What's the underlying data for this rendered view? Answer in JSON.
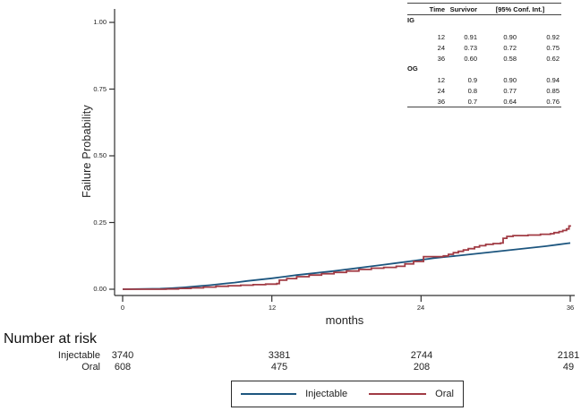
{
  "figure": {
    "y_axis_label": "Failure Probability",
    "x_axis_label": "months",
    "number_at_risk": {
      "title": "Number at risk",
      "rows": [
        {
          "label": "Injectable",
          "counts": [
            "3740",
            "3381",
            "2744",
            "2181"
          ]
        },
        {
          "label": "Oral",
          "counts": [
            "608",
            "475",
            "208",
            "49"
          ]
        }
      ]
    },
    "legend": {
      "items": [
        {
          "label": "Injectable",
          "color": "#1d567f"
        },
        {
          "label": "Oral",
          "color": "#a13b44"
        }
      ]
    }
  },
  "results_table": {
    "headers": {
      "time": "Time",
      "survivor": "Survivor",
      "ci": "[95% Conf. Int.]"
    },
    "groups": [
      {
        "label": "IG",
        "rows": [
          {
            "time": "12",
            "survivor": "0.91",
            "ci_low": "0.90",
            "ci_high": "0.92"
          },
          {
            "time": "24",
            "survivor": "0.73",
            "ci_low": "0.72",
            "ci_high": "0.75"
          },
          {
            "time": "36",
            "survivor": "0.60",
            "ci_low": "0.58",
            "ci_high": "0.62"
          }
        ]
      },
      {
        "label": "OG",
        "rows": [
          {
            "time": "12",
            "survivor": "0.9",
            "ci_low": "0.90",
            "ci_high": "0.94"
          },
          {
            "time": "24",
            "survivor": "0.8",
            "ci_low": "0.77",
            "ci_high": "0.85"
          },
          {
            "time": "36",
            "survivor": "0.7",
            "ci_low": "0.64",
            "ci_high": "0.76"
          }
        ]
      }
    ]
  },
  "chart_data": {
    "type": "line",
    "title": "",
    "xlabel": "months",
    "ylabel": "Failure Probability",
    "xlim": [
      0,
      36
    ],
    "ylim": [
      0,
      1.0
    ],
    "grid": false,
    "legend_position": "bottom",
    "x_tick_values": [
      0,
      12,
      24,
      36
    ],
    "x_tick_labels": [
      "0",
      "12",
      "24",
      "36"
    ],
    "y_tick_values": [
      1.0,
      0.75,
      0.5,
      0.25,
      0.0
    ],
    "y_tick_labels": [
      "1.00",
      "0.75",
      "0.50",
      "0.25",
      "0.00"
    ],
    "series": [
      {
        "name": "Injectable",
        "color": "#1d567f",
        "style": "line",
        "points": [
          [
            0,
            0
          ],
          [
            3,
            0.002
          ],
          [
            4,
            0.004
          ],
          [
            5,
            0.007
          ],
          [
            6,
            0.011
          ],
          [
            7,
            0.015
          ],
          [
            8,
            0.02
          ],
          [
            9,
            0.025
          ],
          [
            10,
            0.031
          ],
          [
            11,
            0.036
          ],
          [
            12,
            0.041
          ],
          [
            13,
            0.047
          ],
          [
            14,
            0.053
          ],
          [
            15,
            0.058
          ],
          [
            16,
            0.063
          ],
          [
            17,
            0.068
          ],
          [
            18,
            0.074
          ],
          [
            19,
            0.08
          ],
          [
            20,
            0.086
          ],
          [
            21,
            0.092
          ],
          [
            22,
            0.098
          ],
          [
            23,
            0.104
          ],
          [
            24,
            0.11
          ],
          [
            25,
            0.116
          ],
          [
            26,
            0.121
          ],
          [
            27,
            0.126
          ],
          [
            28,
            0.131
          ],
          [
            29,
            0.136
          ],
          [
            30,
            0.141
          ],
          [
            31,
            0.146
          ],
          [
            32,
            0.151
          ],
          [
            33,
            0.156
          ],
          [
            34,
            0.161
          ],
          [
            35,
            0.167
          ],
          [
            36,
            0.173
          ]
        ]
      },
      {
        "name": "Oral",
        "color": "#a13b44",
        "style": "step",
        "points": [
          [
            0,
            0
          ],
          [
            3.5,
            0.001
          ],
          [
            4.5,
            0.003
          ],
          [
            5.5,
            0.005
          ],
          [
            6.5,
            0.008
          ],
          [
            7.5,
            0.011
          ],
          [
            8.5,
            0.013
          ],
          [
            9.5,
            0.015
          ],
          [
            10.5,
            0.017
          ],
          [
            11.5,
            0.019
          ],
          [
            12.4,
            0.021
          ],
          [
            12.6,
            0.034
          ],
          [
            13.2,
            0.04
          ],
          [
            14,
            0.047
          ],
          [
            15,
            0.053
          ],
          [
            16,
            0.058
          ],
          [
            17,
            0.063
          ],
          [
            18,
            0.068
          ],
          [
            19,
            0.074
          ],
          [
            20,
            0.079
          ],
          [
            21,
            0.082
          ],
          [
            22,
            0.086
          ],
          [
            22.7,
            0.095
          ],
          [
            23.4,
            0.104
          ],
          [
            24.2,
            0.122
          ],
          [
            25.8,
            0.125
          ],
          [
            26.2,
            0.131
          ],
          [
            26.6,
            0.137
          ],
          [
            27,
            0.142
          ],
          [
            27.4,
            0.147
          ],
          [
            27.8,
            0.152
          ],
          [
            28.3,
            0.158
          ],
          [
            28.7,
            0.163
          ],
          [
            29.2,
            0.168
          ],
          [
            29.8,
            0.171
          ],
          [
            30.4,
            0.173
          ],
          [
            30.6,
            0.191
          ],
          [
            30.9,
            0.198
          ],
          [
            31.4,
            0.201
          ],
          [
            32.6,
            0.203
          ],
          [
            33.6,
            0.206
          ],
          [
            34.4,
            0.208
          ],
          [
            34.7,
            0.212
          ],
          [
            35.1,
            0.216
          ],
          [
            35.4,
            0.22
          ],
          [
            35.7,
            0.226
          ],
          [
            35.9,
            0.237
          ],
          [
            36,
            0.24
          ]
        ]
      }
    ],
    "at_risk": {
      "times": [
        0,
        12,
        24,
        36
      ],
      "Injectable": [
        3740,
        3381,
        2744,
        2181
      ],
      "Oral": [
        608,
        475,
        208,
        49
      ]
    }
  }
}
